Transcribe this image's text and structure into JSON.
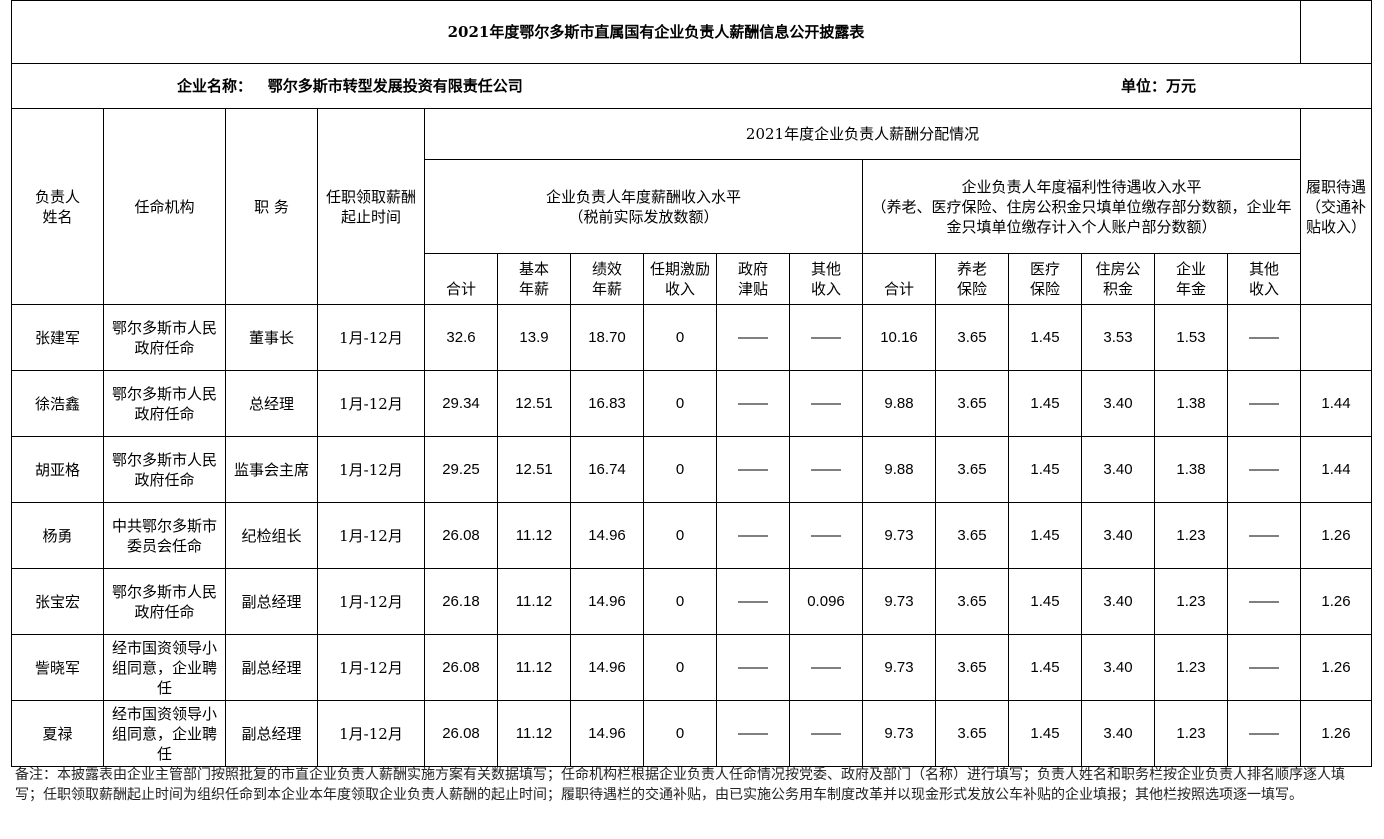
{
  "title": "2021年度鄂尔多斯市直属国有企业负责人薪酬信息公开披露表",
  "company_label": "企业名称：",
  "company_name": "鄂尔多斯市转型发展投资有限责任公司",
  "unit": "单位：万元",
  "headers": {
    "name": "负责人姓名",
    "appointer": "任命机构",
    "position": "职 务",
    "period": "任职领取薪酬起止时间",
    "dist": "2021年度企业负责人薪酬分配情况",
    "salary_group_line1": "企业负责人年度薪酬收入水平",
    "salary_group_line2": "（税前实际发放数额）",
    "welfare_group_line1": "企业负责人年度福利性待遇收入水平",
    "welfare_group_line2": "（养老、医疗保险、住房公积金只填单位缴存部分数额，企业年金只填单位缴存计入个人账户部分数额）",
    "allowance": "履职待遇（交通补贴收入）",
    "sub": [
      "合计",
      "基本年薪",
      "绩效年薪",
      "任期激励收入",
      "政府津贴",
      "其他收入",
      "合计",
      "养老保险",
      "医疗保险",
      "住房公积金",
      "企业年金",
      "其他收入"
    ]
  },
  "rows": [
    {
      "name": "张建军",
      "appointer": "鄂尔多斯市人民政府任命",
      "position": "董事长",
      "period": "1月-12月",
      "total": "32.6",
      "base": "13.9",
      "perf": "18.70",
      "term": "0",
      "gov": "——",
      "other": "——",
      "w_total": "10.16",
      "pension": "3.65",
      "medical": "1.45",
      "housing": "3.53",
      "annuity": "1.53",
      "w_other": "——",
      "allowance": ""
    },
    {
      "name": "徐浩鑫",
      "appointer": "鄂尔多斯市人民政府任命",
      "position": "总经理",
      "period": "1月-12月",
      "total": "29.34",
      "base": "12.51",
      "perf": "16.83",
      "term": "0",
      "gov": "——",
      "other": "——",
      "w_total": "9.88",
      "pension": "3.65",
      "medical": "1.45",
      "housing": "3.40",
      "annuity": "1.38",
      "w_other": "——",
      "allowance": "1.44"
    },
    {
      "name": "胡亚格",
      "appointer": "鄂尔多斯市人民政府任命",
      "position": "监事会主席",
      "period": "1月-12月",
      "total": "29.25",
      "base": "12.51",
      "perf": "16.74",
      "term": "0",
      "gov": "——",
      "other": "——",
      "w_total": "9.88",
      "pension": "3.65",
      "medical": "1.45",
      "housing": "3.40",
      "annuity": "1.38",
      "w_other": "——",
      "allowance": "1.44"
    },
    {
      "name": "杨勇",
      "appointer": "中共鄂尔多斯市委员会任命",
      "position": "纪检组长",
      "period": "1月-12月",
      "total": "26.08",
      "base": "11.12",
      "perf": "14.96",
      "term": "0",
      "gov": "——",
      "other": "——",
      "w_total": "9.73",
      "pension": "3.65",
      "medical": "1.45",
      "housing": "3.40",
      "annuity": "1.23",
      "w_other": "——",
      "allowance": "1.26"
    },
    {
      "name": "张宝宏",
      "appointer": "鄂尔多斯市人民政府任命",
      "position": "副总经理",
      "period": "1月-12月",
      "total": "26.18",
      "base": "11.12",
      "perf": "14.96",
      "term": "0",
      "gov": "——",
      "other": "0.096",
      "w_total": "9.73",
      "pension": "3.65",
      "medical": "1.45",
      "housing": "3.40",
      "annuity": "1.23",
      "w_other": "——",
      "allowance": "1.26"
    },
    {
      "name": "訾晓军",
      "appointer": "经市国资领导小组同意，企业聘任",
      "position": "副总经理",
      "period": "1月-12月",
      "total": "26.08",
      "base": "11.12",
      "perf": "14.96",
      "term": "0",
      "gov": "——",
      "other": "——",
      "w_total": "9.73",
      "pension": "3.65",
      "medical": "1.45",
      "housing": "3.40",
      "annuity": "1.23",
      "w_other": "——",
      "allowance": "1.26"
    },
    {
      "name": "夏禄",
      "appointer": "经市国资领导小组同意，企业聘任",
      "position": "副总经理",
      "period": "1月-12月",
      "total": "26.08",
      "base": "11.12",
      "perf": "14.96",
      "term": "0",
      "gov": "——",
      "other": "——",
      "w_total": "9.73",
      "pension": "3.65",
      "medical": "1.45",
      "housing": "3.40",
      "annuity": "1.23",
      "w_other": "——",
      "allowance": "1.26"
    }
  ],
  "note": "备注：本披露表由企业主管部门按照批复的市直企业负责人薪酬实施方案有关数据填写；任命机构栏根据企业负责人任命情况按党委、政府及部门（名称）进行填写；负责人姓名和职务栏按企业负责人排名顺序逐人填写；任职领取薪酬起止时间为组织任命到本企业本年度领取企业负责人薪酬的起止时间；履职待遇栏的交通补贴，由已实施公务用车制度改革并以现金形式发放公车补贴的企业填报；其他栏按照选项逐一填写。"
}
